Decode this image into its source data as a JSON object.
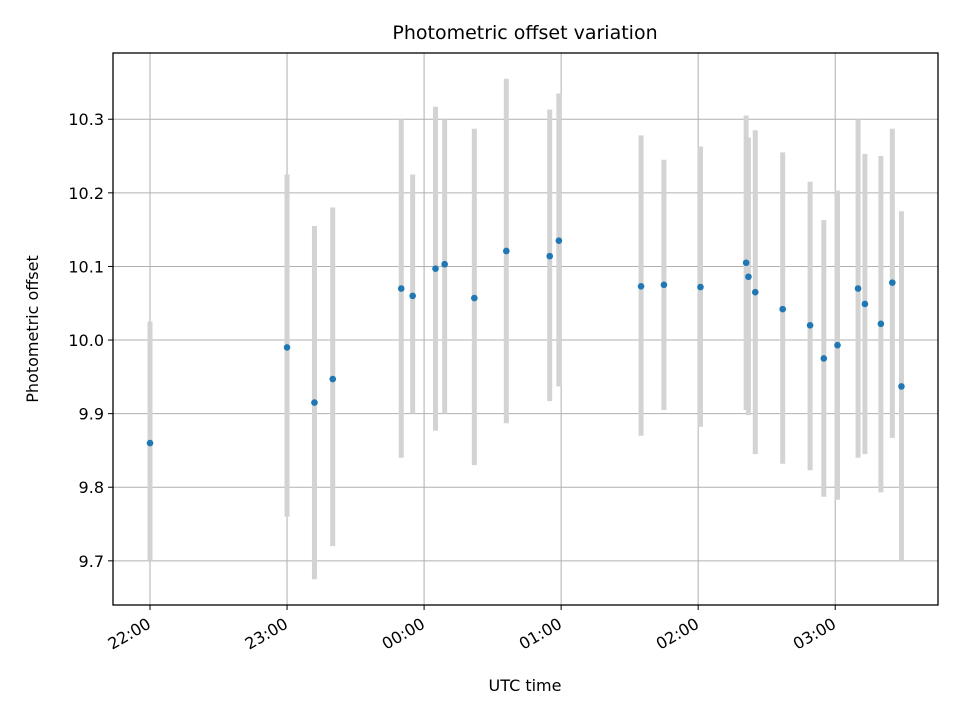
{
  "chart_data": {
    "type": "scatter",
    "title": "Photometric offset variation",
    "xlabel": "UTC time",
    "ylabel": "Photometric offset",
    "x_ticks": [
      "22:00",
      "23:00",
      "00:00",
      "01:00",
      "02:00",
      "03:00"
    ],
    "x_tick_hours": [
      22,
      23,
      24,
      25,
      26,
      27
    ],
    "xlim_hours": [
      21.73,
      27.75
    ],
    "y_ticks": [
      "9.7",
      "9.8",
      "9.9",
      "10.0",
      "10.1",
      "10.2",
      "10.3"
    ],
    "y_tick_values": [
      9.7,
      9.8,
      9.9,
      10.0,
      10.1,
      10.2,
      10.3
    ],
    "ylim": [
      9.64,
      10.39
    ],
    "grid": true,
    "point_color": "#1f77b4",
    "errorbar_color": "#d3d3d3",
    "points": [
      {
        "t": "22:00",
        "y": 9.86,
        "lo": 9.7,
        "hi": 10.025
      },
      {
        "t": "23:00",
        "y": 9.99,
        "lo": 9.76,
        "hi": 10.225
      },
      {
        "t": "23:12",
        "y": 9.915,
        "lo": 9.675,
        "hi": 10.155
      },
      {
        "t": "23:20",
        "y": 9.947,
        "lo": 9.72,
        "hi": 10.18
      },
      {
        "t": "23:50",
        "y": 10.07,
        "lo": 9.84,
        "hi": 10.3
      },
      {
        "t": "23:55",
        "y": 10.06,
        "lo": 9.9,
        "hi": 10.225
      },
      {
        "t": "00:05",
        "y": 10.097,
        "lo": 9.877,
        "hi": 10.317
      },
      {
        "t": "00:09",
        "y": 10.103,
        "lo": 9.9,
        "hi": 10.3
      },
      {
        "t": "00:22",
        "y": 10.057,
        "lo": 9.83,
        "hi": 10.287
      },
      {
        "t": "00:36",
        "y": 10.121,
        "lo": 9.887,
        "hi": 10.355
      },
      {
        "t": "00:55",
        "y": 10.114,
        "lo": 9.917,
        "hi": 10.313
      },
      {
        "t": "00:59",
        "y": 10.135,
        "lo": 9.937,
        "hi": 10.335
      },
      {
        "t": "01:35",
        "y": 10.073,
        "lo": 9.87,
        "hi": 10.278
      },
      {
        "t": "01:45",
        "y": 10.075,
        "lo": 9.905,
        "hi": 10.245
      },
      {
        "t": "02:01",
        "y": 10.072,
        "lo": 9.882,
        "hi": 10.263
      },
      {
        "t": "02:21",
        "y": 10.105,
        "lo": 9.905,
        "hi": 10.305
      },
      {
        "t": "02:22",
        "y": 10.086,
        "lo": 9.898,
        "hi": 10.275
      },
      {
        "t": "02:25",
        "y": 10.065,
        "lo": 9.845,
        "hi": 10.285
      },
      {
        "t": "02:37",
        "y": 10.042,
        "lo": 9.832,
        "hi": 10.255
      },
      {
        "t": "02:49",
        "y": 10.02,
        "lo": 9.823,
        "hi": 10.215
      },
      {
        "t": "02:55",
        "y": 9.975,
        "lo": 9.787,
        "hi": 10.163
      },
      {
        "t": "03:01",
        "y": 9.993,
        "lo": 9.783,
        "hi": 10.203
      },
      {
        "t": "03:10",
        "y": 10.07,
        "lo": 9.84,
        "hi": 10.3
      },
      {
        "t": "03:13",
        "y": 10.049,
        "lo": 9.845,
        "hi": 10.253
      },
      {
        "t": "03:20",
        "y": 10.022,
        "lo": 9.793,
        "hi": 10.25
      },
      {
        "t": "03:25",
        "y": 10.078,
        "lo": 9.867,
        "hi": 10.287
      },
      {
        "t": "03:29",
        "y": 9.937,
        "lo": 9.7,
        "hi": 10.175
      }
    ]
  }
}
